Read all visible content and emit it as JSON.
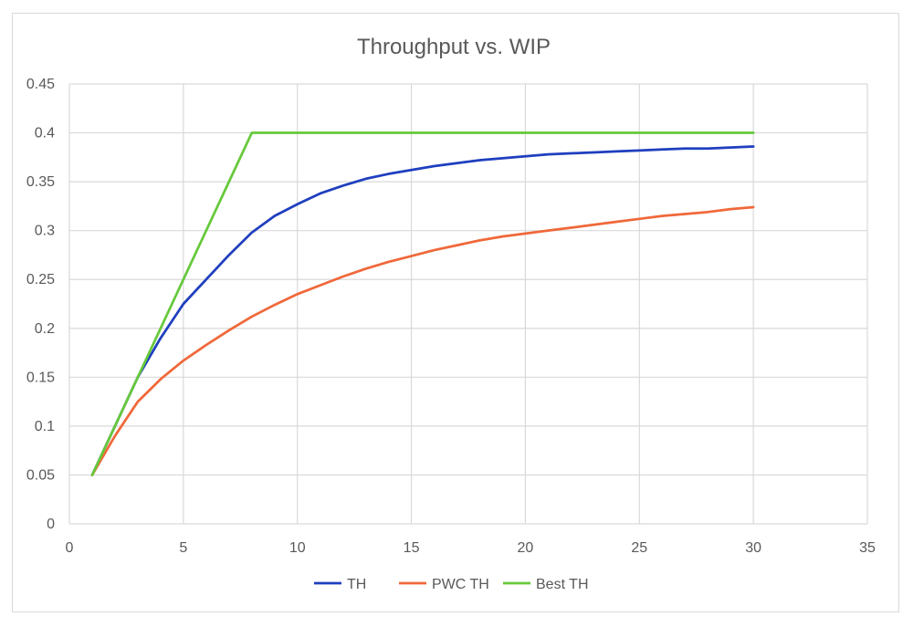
{
  "chart_data": {
    "type": "line",
    "title": "Throughput vs. WIP",
    "xlabel": "",
    "ylabel": "",
    "xlim": [
      0,
      35
    ],
    "ylim": [
      0,
      0.45
    ],
    "x_ticks": [
      0,
      5,
      10,
      15,
      20,
      25,
      30,
      35
    ],
    "x_tick_labels": [
      "0",
      "5",
      "10",
      "15",
      "20",
      "25",
      "30",
      "35"
    ],
    "y_ticks": [
      0,
      0.05,
      0.1,
      0.15,
      0.2,
      0.25,
      0.3,
      0.35,
      0.4,
      0.45
    ],
    "y_tick_labels": [
      "0",
      "0.05",
      "0.1",
      "0.15",
      "0.2",
      "0.25",
      "0.3",
      "0.35",
      "0.4",
      "0.45"
    ],
    "grid": true,
    "legend_position": "bottom",
    "series": [
      {
        "name": "TH",
        "color": "#1f3fbf",
        "points": [
          [
            1,
            0.05
          ],
          [
            2,
            0.1
          ],
          [
            3,
            0.15
          ],
          [
            4,
            0.19
          ],
          [
            5,
            0.225
          ],
          [
            6,
            0.25
          ],
          [
            7,
            0.275
          ],
          [
            8,
            0.298
          ],
          [
            9,
            0.315
          ],
          [
            10,
            0.327
          ],
          [
            11,
            0.338
          ],
          [
            12,
            0.346
          ],
          [
            13,
            0.353
          ],
          [
            14,
            0.358
          ],
          [
            15,
            0.362
          ],
          [
            16,
            0.366
          ],
          [
            17,
            0.369
          ],
          [
            18,
            0.372
          ],
          [
            19,
            0.374
          ],
          [
            20,
            0.376
          ],
          [
            21,
            0.378
          ],
          [
            22,
            0.379
          ],
          [
            23,
            0.38
          ],
          [
            24,
            0.381
          ],
          [
            25,
            0.382
          ],
          [
            26,
            0.383
          ],
          [
            27,
            0.384
          ],
          [
            28,
            0.384
          ],
          [
            29,
            0.385
          ],
          [
            30,
            0.386
          ]
        ]
      },
      {
        "name": "PWC TH",
        "color": "#f0683a",
        "points": [
          [
            1,
            0.05
          ],
          [
            2,
            0.09
          ],
          [
            3,
            0.125
          ],
          [
            4,
            0.148
          ],
          [
            5,
            0.167
          ],
          [
            6,
            0.183
          ],
          [
            7,
            0.198
          ],
          [
            8,
            0.212
          ],
          [
            9,
            0.224
          ],
          [
            10,
            0.235
          ],
          [
            11,
            0.244
          ],
          [
            12,
            0.253
          ],
          [
            13,
            0.261
          ],
          [
            14,
            0.268
          ],
          [
            15,
            0.274
          ],
          [
            16,
            0.28
          ],
          [
            17,
            0.285
          ],
          [
            18,
            0.29
          ],
          [
            19,
            0.294
          ],
          [
            20,
            0.297
          ],
          [
            21,
            0.3
          ],
          [
            22,
            0.303
          ],
          [
            23,
            0.306
          ],
          [
            24,
            0.309
          ],
          [
            25,
            0.312
          ],
          [
            26,
            0.315
          ],
          [
            27,
            0.317
          ],
          [
            28,
            0.319
          ],
          [
            29,
            0.322
          ],
          [
            30,
            0.324
          ]
        ]
      },
      {
        "name": "Best TH",
        "color": "#66c93a",
        "points": [
          [
            1,
            0.05
          ],
          [
            2,
            0.1
          ],
          [
            3,
            0.15
          ],
          [
            4,
            0.2
          ],
          [
            5,
            0.25
          ],
          [
            6,
            0.3
          ],
          [
            7,
            0.35
          ],
          [
            8,
            0.4
          ],
          [
            9,
            0.4
          ],
          [
            10,
            0.4
          ],
          [
            15,
            0.4
          ],
          [
            20,
            0.4
          ],
          [
            25,
            0.4
          ],
          [
            30,
            0.4
          ]
        ]
      }
    ]
  }
}
